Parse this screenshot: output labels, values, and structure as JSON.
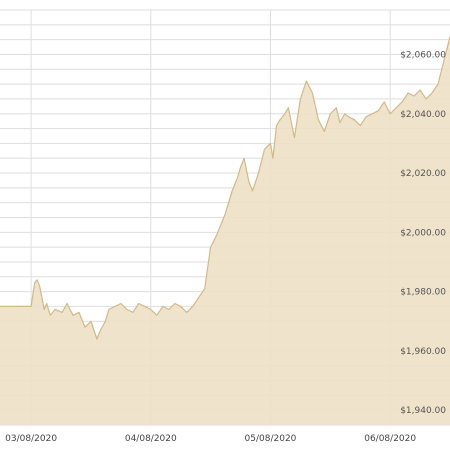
{
  "chart_data": {
    "type": "area",
    "title": "",
    "xlabel": "",
    "ylabel": "",
    "x_ticks": [
      "03/08/2020",
      "04/08/2020",
      "05/08/2020",
      "06/08/2020"
    ],
    "y_ticks": [
      {
        "value": 2060,
        "label": "$2,060.00"
      },
      {
        "value": 2040,
        "label": "$2,040.00"
      },
      {
        "value": 2020,
        "label": "$2,020.00"
      },
      {
        "value": 2000,
        "label": "$2,000.00"
      },
      {
        "value": 1980,
        "label": "$1,980.00"
      },
      {
        "value": 1960,
        "label": "$1,960.00"
      },
      {
        "value": 1940,
        "label": "$1,940.00"
      }
    ],
    "ylim": [
      1935,
      2075
    ],
    "grid": true,
    "series": [
      {
        "x": [
          2.74,
          3.0,
          3.03,
          3.05,
          3.07,
          3.09,
          3.11,
          3.13,
          3.16,
          3.2,
          3.26,
          3.3,
          3.35,
          3.4,
          3.45,
          3.5,
          3.55,
          3.58,
          3.62,
          3.65,
          3.7,
          3.75,
          3.8,
          3.85,
          3.9,
          3.95,
          4.0,
          4.05,
          4.1,
          4.15,
          4.2,
          4.25,
          4.3,
          4.35,
          4.4,
          4.45,
          4.5,
          4.55,
          4.58,
          4.62,
          4.65,
          4.68,
          4.72,
          4.75,
          4.78,
          4.82,
          4.85,
          4.9,
          4.95,
          5.0,
          5.02,
          5.05,
          5.08,
          5.12,
          5.15,
          5.2,
          5.25,
          5.3,
          5.35,
          5.4,
          5.45,
          5.5,
          5.55,
          5.58,
          5.62,
          5.65,
          5.7,
          5.75,
          5.8,
          5.85,
          5.9,
          5.95,
          6.0,
          6.05,
          6.1,
          6.15,
          6.2,
          6.25,
          6.3,
          6.35,
          6.4,
          6.45,
          6.5
        ],
        "y": [
          1975,
          1975,
          1983,
          1984,
          1982,
          1978,
          1974,
          1976,
          1972,
          1974,
          1973,
          1976,
          1972,
          1973,
          1968,
          1970,
          1964,
          1967,
          1970,
          1974,
          1975,
          1976,
          1974,
          1973,
          1976,
          1975,
          1974,
          1972,
          1975,
          1974,
          1976,
          1975,
          1973,
          1975,
          1978,
          1981,
          1995,
          1999,
          2002,
          2006,
          2010,
          2014,
          2018,
          2022,
          2025,
          2017,
          2014,
          2020,
          2028,
          2030,
          2025,
          2036,
          2038,
          2040,
          2042,
          2032,
          2045,
          2051,
          2047,
          2038,
          2034,
          2040,
          2042,
          2037,
          2040,
          2039,
          2038,
          2036,
          2039,
          2040,
          2041,
          2044,
          2040,
          2042,
          2044,
          2047,
          2046,
          2048,
          2045,
          2047,
          2050,
          2058,
          2066
        ]
      }
    ],
    "colors": {
      "area_fill": "#ede0c5",
      "area_line": "#d2b98a",
      "grid": "#dedede",
      "background": "#ffffff"
    }
  }
}
